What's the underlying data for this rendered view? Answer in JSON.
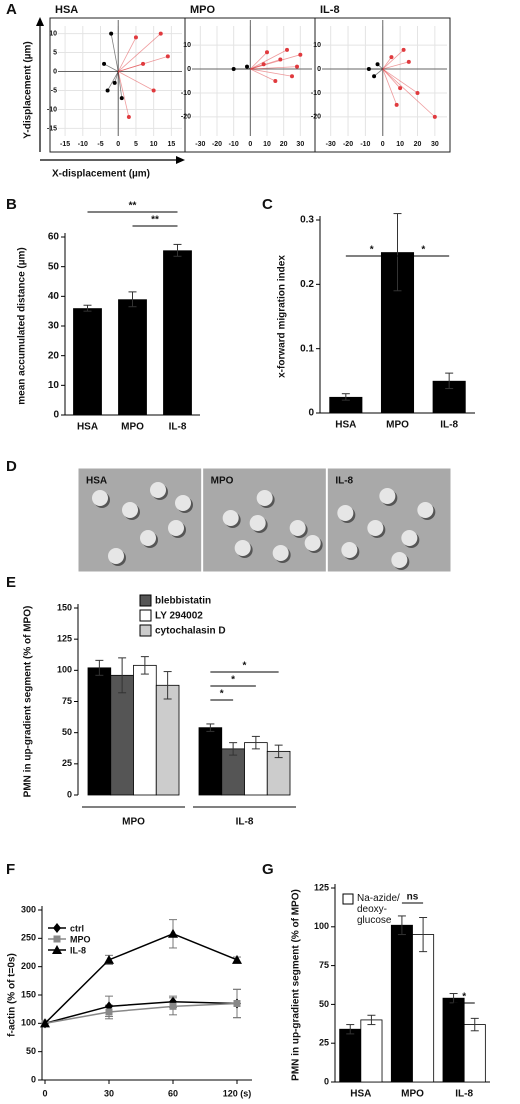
{
  "chart_data": [
    {
      "panel": "A",
      "type": "scatter",
      "title": "HSA",
      "xlabel": "X-displacement (µm)",
      "ylabel": "Y-displacement (µm)",
      "xlim": [
        -17,
        18
      ],
      "ylim": [
        -17,
        12
      ],
      "xticks": [
        -15,
        -10,
        -5,
        0,
        5,
        10,
        15
      ],
      "yticks": [
        -15,
        -10,
        -5,
        0,
        5,
        10
      ],
      "grid": true,
      "series": [
        {
          "color": "#000000",
          "x": [
            -2,
            -3,
            -4,
            1,
            -1
          ],
          "values": [
            10,
            -5,
            2,
            -7,
            -3
          ]
        },
        {
          "color": "#e03a3e",
          "x": [
            5,
            12,
            10,
            3,
            7,
            14
          ],
          "values": [
            9,
            10,
            -5,
            -12,
            2,
            4
          ]
        }
      ]
    },
    {
      "type": "scatter",
      "title": "MPO",
      "xlim": [
        -35,
        37
      ],
      "ylim": [
        -28,
        18
      ],
      "xticks": [
        -30,
        -20,
        -10,
        0,
        10,
        20,
        30
      ],
      "yticks": [
        -20,
        -10,
        0,
        10
      ],
      "grid": true,
      "series": [
        {
          "color": "#000000",
          "x": [
            -10,
            -2
          ],
          "values": [
            0,
            1
          ]
        },
        {
          "color": "#e03a3e",
          "x": [
            10,
            22,
            30,
            25,
            15,
            8,
            28,
            18
          ],
          "values": [
            7,
            8,
            6,
            -3,
            -5,
            2,
            1,
            4
          ]
        }
      ]
    },
    {
      "type": "scatter",
      "title": "IL-8",
      "xlim": [
        -35,
        37
      ],
      "ylim": [
        -28,
        18
      ],
      "xticks": [
        -30,
        -20,
        -10,
        0,
        10,
        20,
        30
      ],
      "yticks": [
        -20,
        -10,
        0,
        10
      ],
      "grid": true,
      "series": [
        {
          "color": "#000000",
          "x": [
            -8,
            -5,
            -3
          ],
          "values": [
            0,
            -3,
            2
          ]
        },
        {
          "color": "#e03a3e",
          "x": [
            5,
            10,
            15,
            20,
            30,
            8,
            12
          ],
          "values": [
            5,
            -8,
            3,
            -10,
            -20,
            -15,
            8
          ]
        }
      ]
    },
    {
      "panel": "B",
      "type": "bar",
      "ylabel": "mean accumulated distance (µm)",
      "categories": [
        "HSA",
        "MPO",
        "IL-8"
      ],
      "values": [
        36,
        39,
        55.5
      ],
      "errors": [
        1,
        2.5,
        2
      ],
      "color": "#000000",
      "ylim": [
        0,
        60
      ],
      "yticks": [
        0,
        10,
        20,
        30,
        40,
        50,
        60
      ],
      "annotations": [
        "**",
        "**"
      ]
    },
    {
      "panel": "C",
      "type": "bar",
      "ylabel": "x-forward migration index",
      "categories": [
        "HSA",
        "MPO",
        "IL-8"
      ],
      "values": [
        0.025,
        0.25,
        0.05
      ],
      "errors": [
        0.005,
        0.06,
        0.012
      ],
      "color": "#000000",
      "ylim": [
        0,
        0.3
      ],
      "yticks": [
        0,
        0.1,
        0.2,
        0.3
      ],
      "annotations": [
        "*",
        "*"
      ]
    },
    {
      "panel": "D",
      "type": "micrograph",
      "categories": [
        "HSA",
        "MPO",
        "IL-8"
      ]
    },
    {
      "panel": "E",
      "type": "grouped-bar",
      "ylabel": "PMN in up-gradient segment (% of MPO)",
      "categories": [
        "MPO",
        "IL-8"
      ],
      "series": [
        {
          "color": "#000000",
          "values": [
            102,
            54
          ],
          "errors": [
            6,
            3
          ]
        },
        {
          "name": "blebbistatin",
          "color": "#555555",
          "values": [
            96,
            37
          ],
          "errors": [
            14,
            5
          ]
        },
        {
          "name": "LY 294002",
          "color": "#ffffff",
          "values": [
            104,
            42
          ],
          "errors": [
            7,
            5
          ]
        },
        {
          "name": "cytochalasin D",
          "color": "#cccccc",
          "values": [
            88,
            35
          ],
          "errors": [
            11,
            5
          ]
        }
      ],
      "ylim": [
        0,
        150
      ],
      "yticks": [
        0,
        25,
        50,
        75,
        100,
        125,
        150
      ],
      "annotations": [
        "*",
        "*",
        "*"
      ]
    },
    {
      "panel": "F",
      "type": "line",
      "ylabel": "f-actin (% of t=0s)",
      "categories": [
        "0",
        "30",
        "60",
        "120 (s)"
      ],
      "series": [
        {
          "name": "ctrl",
          "color": "#000000",
          "marker": "diamond",
          "values": [
            100,
            130,
            138,
            135
          ],
          "errors": [
            0,
            18,
            10,
            25
          ]
        },
        {
          "name": "MPO",
          "color": "#888888",
          "marker": "square",
          "values": [
            100,
            120,
            130,
            135
          ],
          "errors": [
            0,
            12,
            15,
            25
          ]
        },
        {
          "name": "IL-8",
          "color": "#000000",
          "marker": "triangle",
          "values": [
            100,
            212,
            258,
            212
          ],
          "errors": [
            0,
            8,
            25,
            5
          ]
        }
      ],
      "ylim": [
        0,
        300
      ],
      "yticks": [
        0,
        50,
        100,
        150,
        200,
        250,
        300
      ]
    },
    {
      "panel": "G",
      "type": "grouped-bar",
      "ylabel": "PMN in up-gradient segment (% of MPO)",
      "categories": [
        "HSA",
        "MPO",
        "IL-8"
      ],
      "series": [
        {
          "color": "#000000",
          "values": [
            34,
            101,
            54
          ],
          "errors": [
            3,
            6,
            3
          ]
        },
        {
          "name": "Na-azide/ deoxy-glucose",
          "color": "#ffffff",
          "values": [
            40,
            95,
            37
          ],
          "errors": [
            3,
            11,
            4
          ]
        }
      ],
      "ylim": [
        0,
        125
      ],
      "yticks": [
        0,
        25,
        50,
        75,
        100,
        125
      ],
      "annotations": [
        "ns",
        "*"
      ]
    }
  ]
}
